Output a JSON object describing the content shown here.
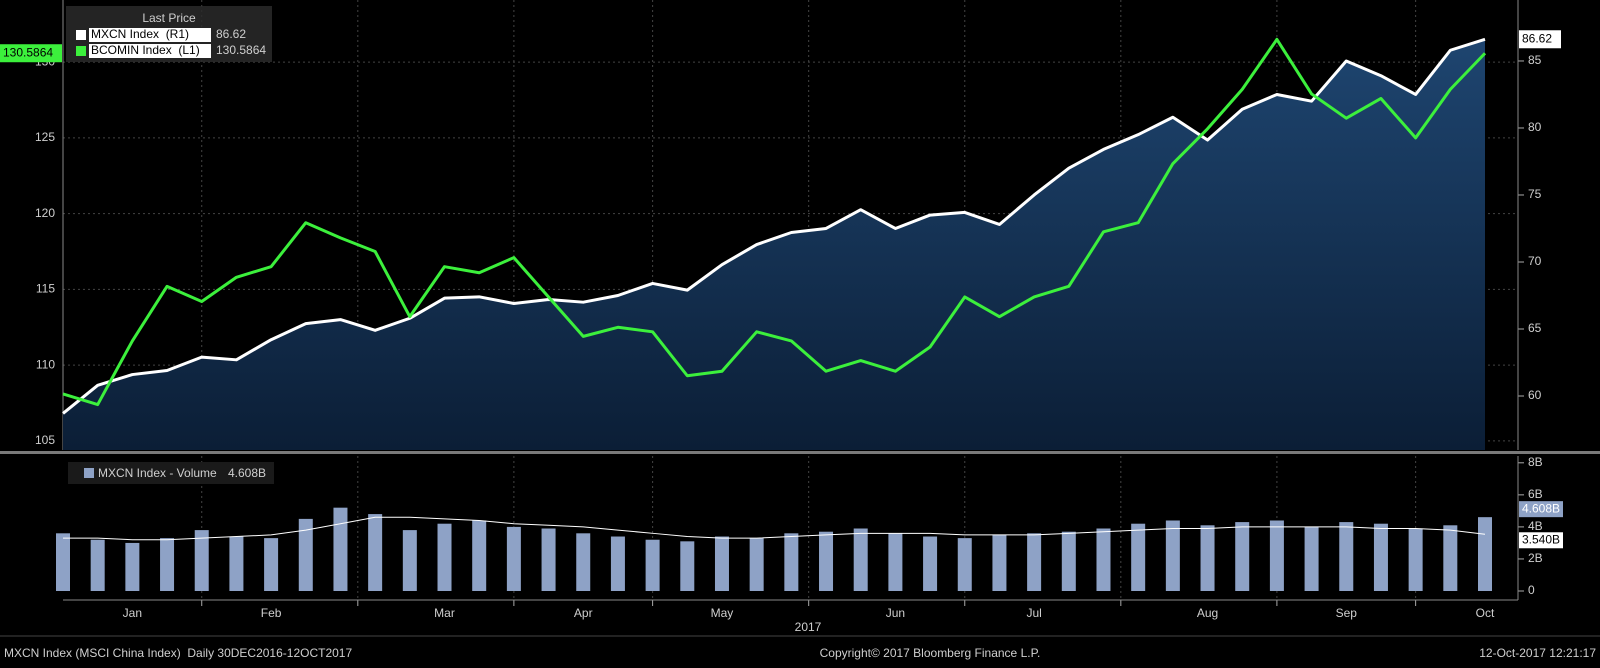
{
  "chart_data": [
    {
      "type": "line",
      "legend_title": "Last Price",
      "categories": [
        null,
        null,
        "Jan",
        null,
        null,
        null,
        "Feb",
        null,
        null,
        null,
        null,
        "Mar",
        null,
        null,
        null,
        "Apr",
        null,
        null,
        null,
        "May",
        null,
        null,
        null,
        null,
        "Jun",
        null,
        null,
        null,
        "Jul",
        null,
        null,
        null,
        null,
        "Aug",
        null,
        null,
        null,
        "Sep",
        null,
        null,
        null,
        "Oct"
      ],
      "series": [
        {
          "name": "MXCN Index  (R1)",
          "color": "#ffffff",
          "axis": "y2",
          "area": true,
          "values": [
            58.7,
            60.8,
            61.6,
            61.9,
            62.9,
            62.7,
            64.2,
            65.4,
            65.7,
            64.9,
            65.8,
            67.3,
            67.4,
            66.9,
            67.2,
            67.0,
            67.5,
            68.4,
            67.9,
            69.8,
            71.3,
            72.2,
            72.5,
            73.9,
            72.5,
            73.5,
            73.7,
            72.8,
            75.0,
            77.0,
            78.4,
            79.5,
            80.8,
            79.1,
            81.4,
            82.5,
            82.0,
            85.0,
            83.9,
            82.5,
            85.8,
            86.62
          ]
        },
        {
          "name": "BCOMIN Index  (L1)",
          "color": "#3cf03c",
          "values": [
            108.1,
            107.4,
            111.6,
            115.2,
            114.2,
            115.8,
            116.5,
            119.4,
            118.4,
            117.5,
            113.2,
            116.5,
            116.1,
            117.1,
            114.5,
            111.9,
            112.5,
            112.2,
            109.3,
            109.6,
            112.2,
            111.6,
            109.6,
            110.3,
            109.6,
            111.2,
            114.5,
            113.2,
            114.5,
            115.2,
            118.8,
            119.4,
            123.3,
            125.6,
            128.2,
            131.5,
            127.9,
            126.3,
            127.6,
            125.0,
            128.2,
            130.5864
          ]
        }
      ],
      "ylim": [
        104.4,
        134.1
      ],
      "yticks": [
        105,
        110,
        115,
        120,
        125,
        130
      ],
      "y2lim": [
        55.97,
        89.55
      ],
      "y2ticks": [
        60,
        65,
        70,
        75,
        80,
        85
      ],
      "grid": true,
      "xlabel": "2017"
    },
    {
      "type": "bar",
      "series": [
        {
          "name": "MXCN Index - Volume",
          "color": "#8ea2c6",
          "last_label": "4.608B",
          "values": [
            3.6,
            3.2,
            3.0,
            3.3,
            3.8,
            3.4,
            3.3,
            4.5,
            5.2,
            4.8,
            3.8,
            4.2,
            4.4,
            4.0,
            3.9,
            3.6,
            3.4,
            3.2,
            3.1,
            3.4,
            3.3,
            3.6,
            3.7,
            3.9,
            3.6,
            3.4,
            3.3,
            3.5,
            3.6,
            3.7,
            3.9,
            4.2,
            4.4,
            4.1,
            4.3,
            4.4,
            4.0,
            4.3,
            4.2,
            3.9,
            4.1,
            4.608
          ]
        },
        {
          "type": "line",
          "color": "#ffffff",
          "last_label": "3.540B",
          "values": [
            3.3,
            3.3,
            3.2,
            3.2,
            3.3,
            3.4,
            3.5,
            3.8,
            4.2,
            4.6,
            4.6,
            4.5,
            4.4,
            4.2,
            4.1,
            4.0,
            3.8,
            3.6,
            3.4,
            3.3,
            3.3,
            3.4,
            3.5,
            3.6,
            3.6,
            3.6,
            3.5,
            3.5,
            3.5,
            3.6,
            3.7,
            3.8,
            3.9,
            3.9,
            4.0,
            4.0,
            4.0,
            4.0,
            3.9,
            3.9,
            3.8,
            3.54
          ]
        }
      ],
      "ylim": [
        0,
        8.3
      ],
      "y2ticks": [
        0,
        {
          "value": 2,
          "label": "2B"
        },
        {
          "value": 4,
          "label": "4B"
        },
        {
          "value": 6,
          "label": "6B"
        },
        {
          "value": 8,
          "label": "8B"
        }
      ]
    }
  ],
  "footer": {
    "left": "MXCN Index (MSCI China Index)  Daily 30DEC2016-12OCT2017",
    "center": "Copyright© 2017 Bloomberg Finance L.P.",
    "right": "12-Oct-2017 12:21:17"
  }
}
